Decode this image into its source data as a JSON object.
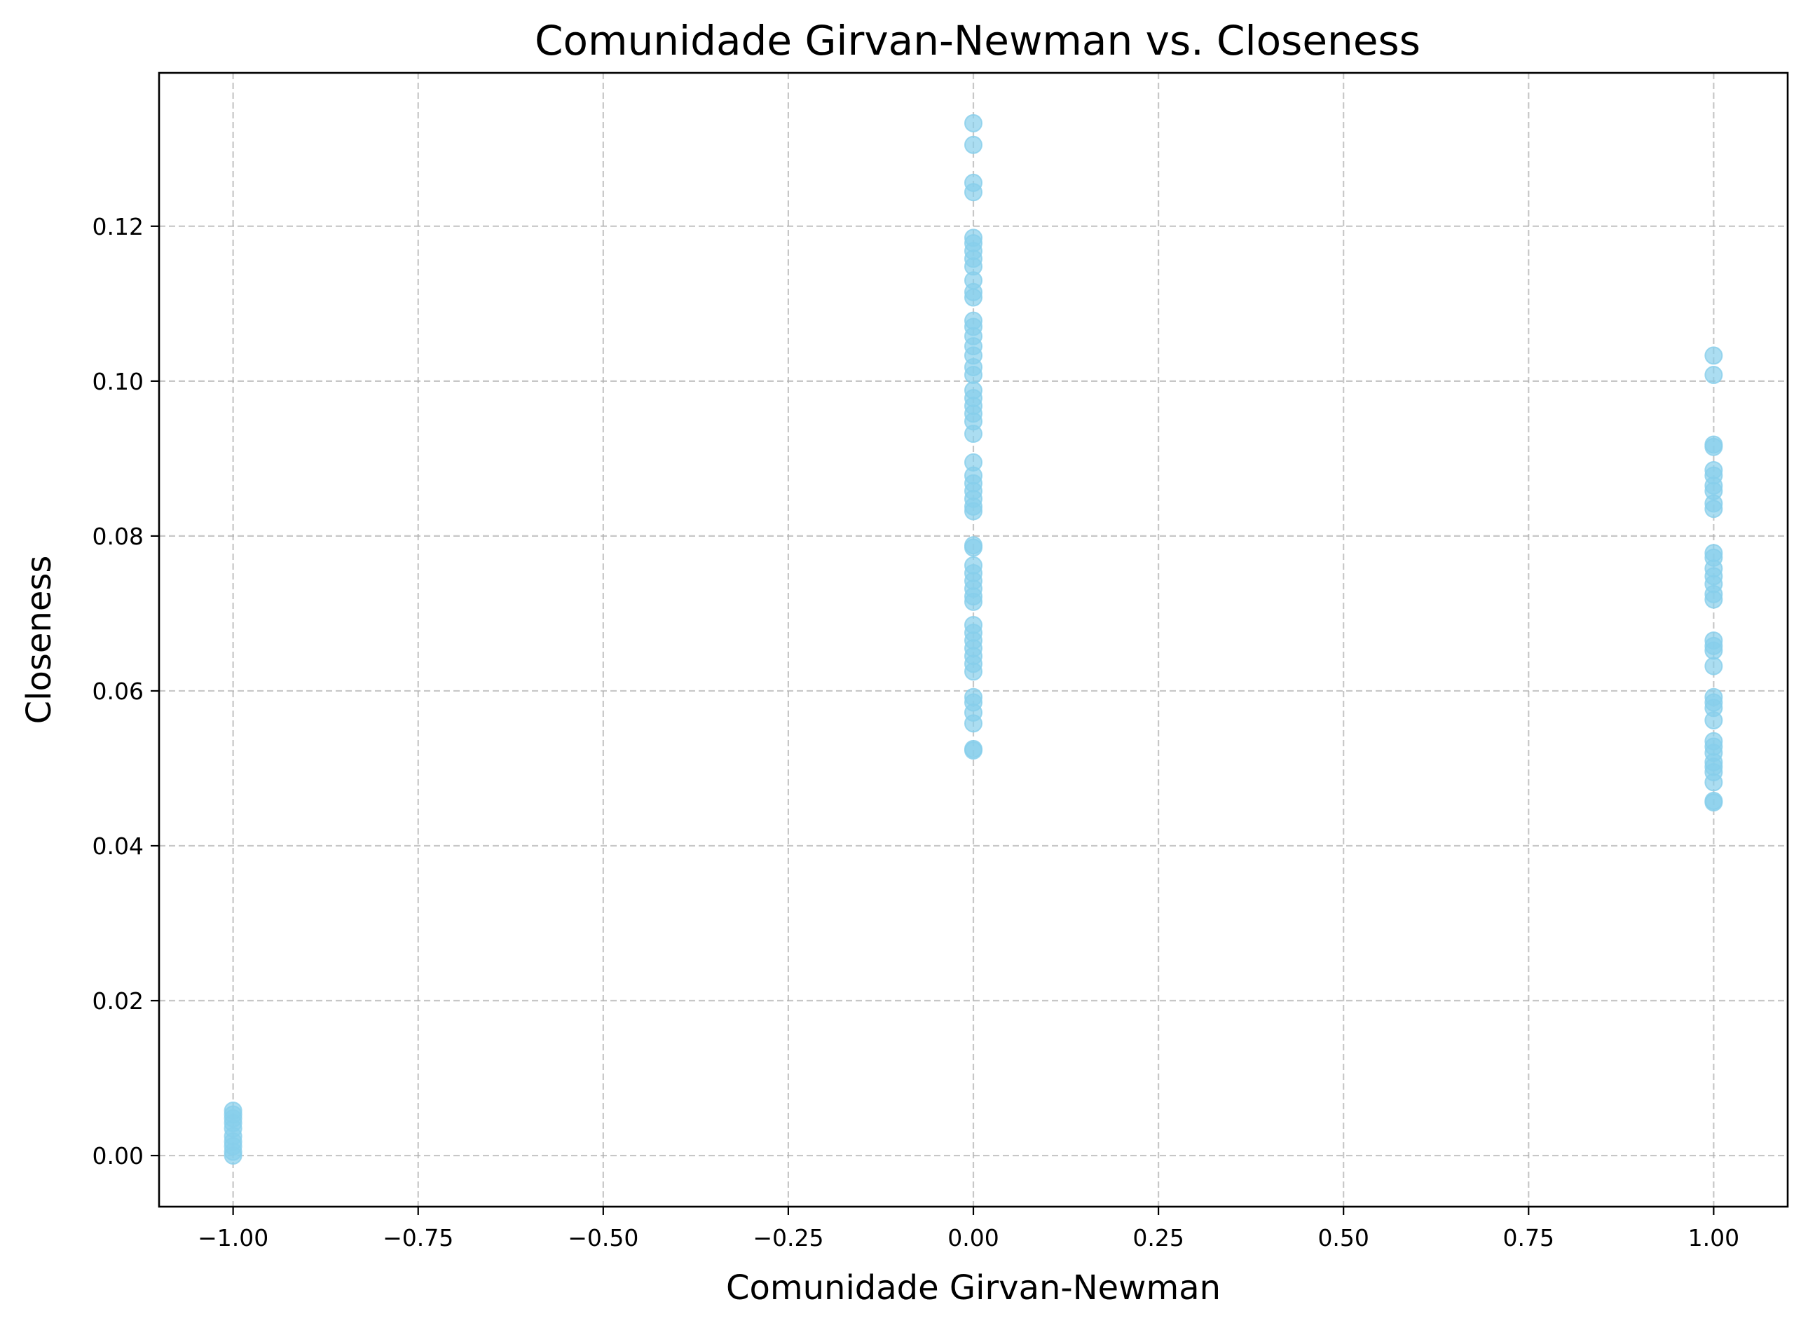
{
  "chart_data": {
    "type": "scatter",
    "title": "Comunidade Girvan-Newman vs. Closeness",
    "xlabel": "Comunidade Girvan-Newman",
    "ylabel": "Closeness",
    "xlim": [
      -1.1,
      1.1
    ],
    "ylim": [
      -0.0066,
      0.1398
    ],
    "xticks": [
      -1.0,
      -0.75,
      -0.5,
      -0.25,
      0.0,
      0.25,
      0.5,
      0.75,
      1.0
    ],
    "xtick_labels": [
      "−1.00",
      "−0.75",
      "−0.50",
      "−0.25",
      "0.00",
      "0.25",
      "0.50",
      "0.75",
      "1.00"
    ],
    "yticks": [
      0.0,
      0.02,
      0.04,
      0.06,
      0.08,
      0.1,
      0.12
    ],
    "ytick_labels": [
      "0.00",
      "0.02",
      "0.04",
      "0.06",
      "0.08",
      "0.10",
      "0.12"
    ],
    "grid": true,
    "color": "#87ceeb",
    "points": [
      [
        -1,
        0.0
      ],
      [
        -1,
        0.0005
      ],
      [
        -1,
        0.0012
      ],
      [
        -1,
        0.0018
      ],
      [
        -1,
        0.0025
      ],
      [
        -1,
        0.0035
      ],
      [
        -1,
        0.0042
      ],
      [
        -1,
        0.0048
      ],
      [
        -1,
        0.0053
      ],
      [
        -1,
        0.0058
      ],
      [
        0,
        0.1333
      ],
      [
        0,
        0.1305
      ],
      [
        0,
        0.1256
      ],
      [
        0,
        0.1244
      ],
      [
        0,
        0.1185
      ],
      [
        0,
        0.1178
      ],
      [
        0,
        0.1168
      ],
      [
        0,
        0.1158
      ],
      [
        0,
        0.1148
      ],
      [
        0,
        0.113
      ],
      [
        0,
        0.1115
      ],
      [
        0,
        0.1108
      ],
      [
        0,
        0.1078
      ],
      [
        0,
        0.107
      ],
      [
        0,
        0.1058
      ],
      [
        0,
        0.1045
      ],
      [
        0,
        0.1033
      ],
      [
        0,
        0.1018
      ],
      [
        0,
        0.1008
      ],
      [
        0,
        0.0988
      ],
      [
        0,
        0.0978
      ],
      [
        0,
        0.0968
      ],
      [
        0,
        0.0958
      ],
      [
        0,
        0.0948
      ],
      [
        0,
        0.0932
      ],
      [
        0,
        0.0895
      ],
      [
        0,
        0.0878
      ],
      [
        0,
        0.0868
      ],
      [
        0,
        0.0858
      ],
      [
        0,
        0.0848
      ],
      [
        0,
        0.0838
      ],
      [
        0,
        0.0832
      ],
      [
        0,
        0.0788
      ],
      [
        0,
        0.0785
      ],
      [
        0,
        0.0762
      ],
      [
        0,
        0.0752
      ],
      [
        0,
        0.0742
      ],
      [
        0,
        0.0732
      ],
      [
        0,
        0.0722
      ],
      [
        0,
        0.0715
      ],
      [
        0,
        0.0685
      ],
      [
        0,
        0.0675
      ],
      [
        0,
        0.0665
      ],
      [
        0,
        0.0655
      ],
      [
        0,
        0.0645
      ],
      [
        0,
        0.0635
      ],
      [
        0,
        0.0625
      ],
      [
        0,
        0.0592
      ],
      [
        0,
        0.0585
      ],
      [
        0,
        0.0572
      ],
      [
        0,
        0.0558
      ],
      [
        0,
        0.0525
      ],
      [
        0,
        0.0523
      ],
      [
        1,
        0.1033
      ],
      [
        1,
        0.1008
      ],
      [
        1,
        0.0918
      ],
      [
        1,
        0.0915
      ],
      [
        1,
        0.0885
      ],
      [
        1,
        0.0878
      ],
      [
        1,
        0.0865
      ],
      [
        1,
        0.0858
      ],
      [
        1,
        0.0842
      ],
      [
        1,
        0.0835
      ],
      [
        1,
        0.0778
      ],
      [
        1,
        0.0772
      ],
      [
        1,
        0.0758
      ],
      [
        1,
        0.0748
      ],
      [
        1,
        0.0738
      ],
      [
        1,
        0.0725
      ],
      [
        1,
        0.0718
      ],
      [
        1,
        0.0665
      ],
      [
        1,
        0.0658
      ],
      [
        1,
        0.0652
      ],
      [
        1,
        0.0632
      ],
      [
        1,
        0.0592
      ],
      [
        1,
        0.0585
      ],
      [
        1,
        0.0578
      ],
      [
        1,
        0.0562
      ],
      [
        1,
        0.0535
      ],
      [
        1,
        0.0528
      ],
      [
        1,
        0.052
      ],
      [
        1,
        0.0508
      ],
      [
        1,
        0.0502
      ],
      [
        1,
        0.0495
      ],
      [
        1,
        0.0482
      ],
      [
        1,
        0.0458
      ],
      [
        1,
        0.0456
      ]
    ]
  }
}
